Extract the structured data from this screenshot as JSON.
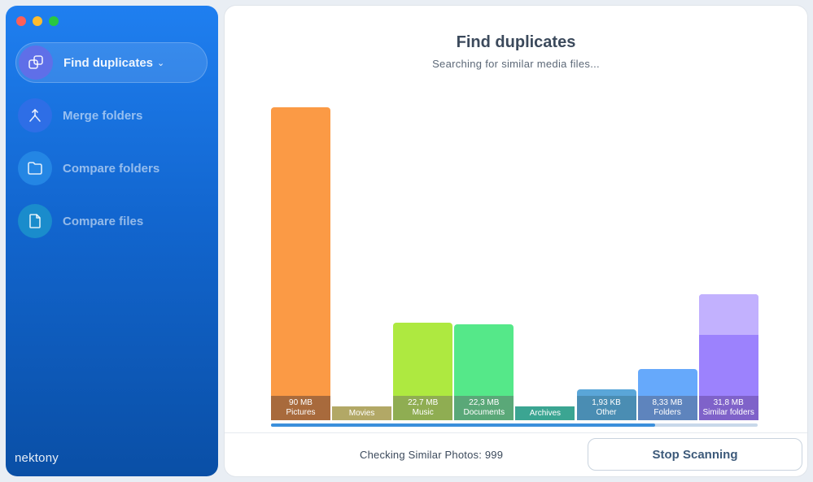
{
  "sidebar": {
    "items": [
      {
        "label": "Find duplicates",
        "icon": "duplicate-icon",
        "active": true
      },
      {
        "label": "Merge folders",
        "icon": "merge-icon",
        "active": false
      },
      {
        "label": "Compare folders",
        "icon": "folder-icon",
        "active": false
      },
      {
        "label": "Compare files",
        "icon": "file-icon",
        "active": false
      }
    ],
    "brand": "nektony"
  },
  "main": {
    "title": "Find duplicates",
    "subtitle": "Searching for similar media files...",
    "status_label": "Checking Similar Photos: 999",
    "stop_button": "Stop Scanning"
  },
  "progress": 0.79,
  "chart_data": {
    "type": "bar",
    "categories": [
      "Pictures",
      "Movies",
      "Music",
      "Documents",
      "Archives",
      "Other",
      "Folders",
      "Similar folders"
    ],
    "values": [
      90,
      0,
      22.7,
      22.3,
      0,
      1.93,
      8.33,
      31.8
    ],
    "value_labels": [
      "90 MB",
      "",
      "22,7 MB",
      "22,3 MB",
      "",
      "1,93 KB",
      "8,33 MB",
      "31,8 MB"
    ],
    "colors": [
      "#fb9a45",
      "#d4c56a",
      "#aee940",
      "#55e889",
      "#4cc7a8",
      "#5aa6d8",
      "#66a9fb",
      "#9c82fd"
    ],
    "label_colors": [
      "#a86a3c",
      "#b2a866",
      "#8fad52",
      "#5aa878",
      "#3ba592",
      "#4a8db3",
      "#5e84bd",
      "#7f62c9"
    ]
  }
}
